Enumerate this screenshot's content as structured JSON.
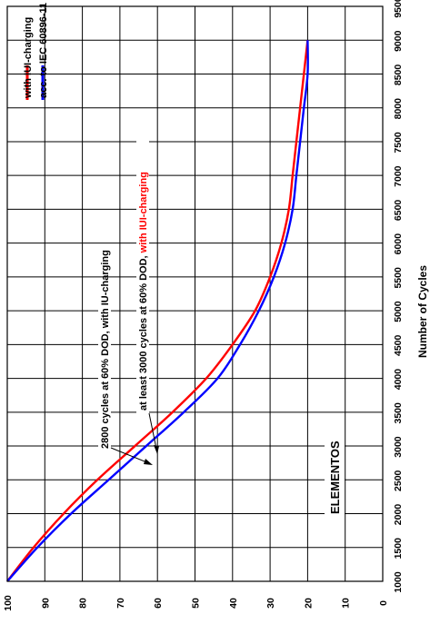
{
  "chart_data": {
    "type": "line",
    "title": "",
    "xlabel": "Number of Cycles",
    "ylabel": "",
    "xlim": [
      1000,
      9500
    ],
    "ylim": [
      0,
      100
    ],
    "x_ticks": [
      "1000",
      "1500",
      "2000",
      "2500",
      "3000",
      "3500",
      "4000",
      "4500",
      "5000",
      "5500",
      "6000",
      "6500",
      "7000",
      "7500",
      "8000",
      "8500",
      "9000",
      "9500"
    ],
    "y_ticks": [
      "100",
      "90",
      "80",
      "70",
      "60",
      "50",
      "40",
      "30",
      "20",
      "10",
      "0"
    ],
    "grid": true,
    "legend": "top-right",
    "series": [
      {
        "name": "with IUI-charging",
        "color": "#ff0000",
        "x": [
          1000,
          1500,
          2000,
          2500,
          3000,
          3500,
          4000,
          4500,
          5000,
          5500,
          6000,
          6500,
          7000,
          7500,
          8000,
          8500,
          9000
        ],
        "y": [
          100,
          93,
          85,
          76,
          66,
          56,
          47,
          40,
          34,
          30,
          27,
          25,
          24,
          23,
          22,
          21,
          20
        ]
      },
      {
        "name": "acc. to IEC 60896-11",
        "color": "#0000ff",
        "x": [
          1000,
          1500,
          2000,
          2500,
          3000,
          3500,
          4000,
          4500,
          5000,
          5500,
          6000,
          6500,
          7000,
          7500,
          8000,
          8500,
          9000
        ],
        "y": [
          100,
          92,
          83,
          73,
          63,
          53,
          44,
          38,
          33,
          29,
          26,
          24,
          23,
          22,
          21,
          20,
          20
        ]
      }
    ],
    "annotations": [
      {
        "text": "2800 cycles at 60% DOD, with IU-charging",
        "color": "#000000"
      },
      {
        "text_part1": "at least 3000 cycles at 60% DOD, ",
        "text_part2": "with IUI-charging",
        "color1": "#000000",
        "color2": "#ff0000"
      },
      {
        "text": "ELEMENTOS",
        "color": "#000000"
      }
    ]
  }
}
